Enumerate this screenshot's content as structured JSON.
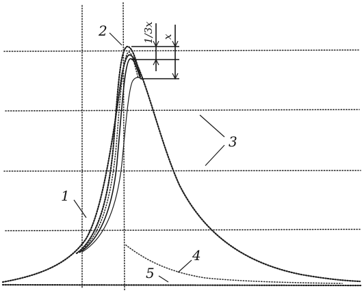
{
  "labels": {
    "marker_1": "1",
    "marker_2": "2",
    "marker_3": "3",
    "marker_4": "4",
    "marker_5": "5",
    "dim_x": "x",
    "dim_third_x": "1/3x"
  }
}
